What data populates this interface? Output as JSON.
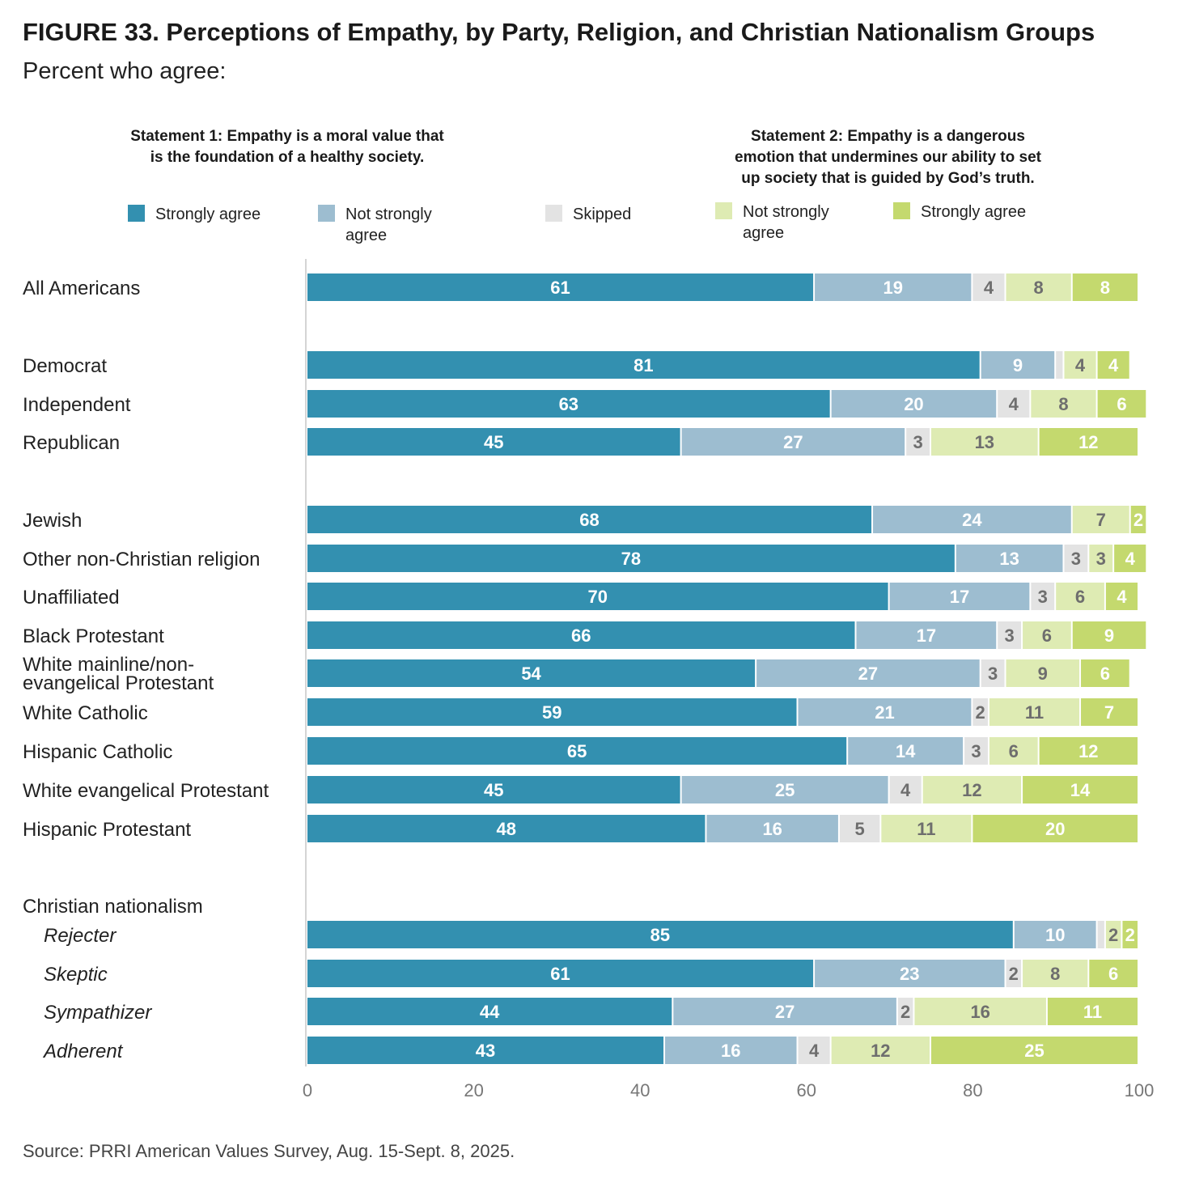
{
  "title": "FIGURE 33.  Perceptions of Empathy, by Party, Religion, and Christian Nationalism Groups",
  "subtitle": "Percent who agree:",
  "statement1": [
    "Statement 1: Empathy is a moral value that",
    "is the foundation of a healthy society."
  ],
  "statement2": [
    "Statement 2: Empathy is a dangerous",
    "emotion that undermines our ability to set",
    "up society that is guided by God’s truth."
  ],
  "legend": [
    {
      "label": "Strongly agree",
      "color": "#3390b0"
    },
    {
      "label": "Not strongly agree",
      "color": "#9dbdd0"
    },
    {
      "label": "Skipped",
      "color": "#e3e3e3"
    },
    {
      "label": "Not strongly agree",
      "color": "#deebb3"
    },
    {
      "label": "Strongly agree",
      "color": "#c4d96e"
    }
  ],
  "source": "Source: PRRI American Values Survey, Aug. 15-Sept. 8, 2025.",
  "chart_data": {
    "type": "bar",
    "orientation": "horizontal",
    "stacked": true,
    "xlim": [
      0,
      100
    ],
    "xticks": [
      0,
      20,
      40,
      60,
      80,
      100
    ],
    "series_names": [
      "Statement 1: Strongly agree",
      "Statement 1: Not strongly agree",
      "Skipped",
      "Statement 2: Not strongly agree",
      "Statement 2: Strongly agree"
    ],
    "colors": [
      "#3390b0",
      "#9dbdd0",
      "#e3e3e3",
      "#deebb3",
      "#c4d96e"
    ],
    "label_colors": [
      "#ffffff",
      "#ffffff",
      "#6e6e6e",
      "#6e6e6e",
      "#ffffff"
    ],
    "rows": [
      {
        "label": "All Americans",
        "italic": false,
        "values": [
          61,
          19,
          4,
          8,
          8
        ],
        "labels": [
          "61",
          "19",
          "4",
          "8",
          "8"
        ]
      },
      {
        "label": "Democrat",
        "italic": false,
        "values": [
          81,
          9,
          1,
          4,
          4
        ],
        "labels": [
          "81",
          "9",
          "",
          "4",
          "4"
        ]
      },
      {
        "label": "Independent",
        "italic": false,
        "values": [
          63,
          20,
          4,
          8,
          6
        ],
        "labels": [
          "63",
          "20",
          "4",
          "8",
          "6"
        ]
      },
      {
        "label": "Republican",
        "italic": false,
        "values": [
          45,
          27,
          3,
          13,
          12
        ],
        "labels": [
          "45",
          "27",
          "3",
          "13",
          "12"
        ]
      },
      {
        "label": "Jewish",
        "italic": false,
        "values": [
          68,
          24,
          0,
          7,
          2
        ],
        "labels": [
          "68",
          "24",
          "",
          "7",
          "2"
        ]
      },
      {
        "label": "Other non-Christian religion",
        "italic": false,
        "values": [
          78,
          13,
          3,
          3,
          4
        ],
        "labels": [
          "78",
          "13",
          "3",
          "3",
          "4"
        ]
      },
      {
        "label": "Unaffiliated",
        "italic": false,
        "values": [
          70,
          17,
          3,
          6,
          4
        ],
        "labels": [
          "70",
          "17",
          "3",
          "6",
          "4"
        ]
      },
      {
        "label": "Black Protestant",
        "italic": false,
        "values": [
          66,
          17,
          3,
          6,
          9
        ],
        "labels": [
          "66",
          "17",
          "3",
          "6",
          "9"
        ]
      },
      {
        "label": "White mainline/non-\nevangelical Protestant",
        "italic": false,
        "values": [
          54,
          27,
          3,
          9,
          6
        ],
        "labels": [
          "54",
          "27",
          "3",
          "9",
          "6"
        ]
      },
      {
        "label": "White Catholic",
        "italic": false,
        "values": [
          59,
          21,
          2,
          11,
          7
        ],
        "labels": [
          "59",
          "21",
          "2",
          "11",
          "7"
        ]
      },
      {
        "label": "Hispanic Catholic",
        "italic": false,
        "values": [
          65,
          14,
          3,
          6,
          12
        ],
        "labels": [
          "65",
          "14",
          "3",
          "6",
          "12"
        ]
      },
      {
        "label": "White evangelical Protestant",
        "italic": false,
        "values": [
          45,
          25,
          4,
          12,
          14
        ],
        "labels": [
          "45",
          "25",
          "4",
          "12",
          "14"
        ]
      },
      {
        "label": "Hispanic Protestant",
        "italic": false,
        "values": [
          48,
          16,
          5,
          11,
          20
        ],
        "labels": [
          "48",
          "16",
          "5",
          "11",
          "20"
        ]
      },
      {
        "label": "Rejecter",
        "italic": true,
        "group_header": "Christian nationalism",
        "values": [
          85,
          10,
          1,
          2,
          2
        ],
        "labels": [
          "85",
          "10",
          "",
          "2",
          "2"
        ]
      },
      {
        "label": "Skeptic",
        "italic": true,
        "values": [
          61,
          23,
          2,
          8,
          6
        ],
        "labels": [
          "61",
          "23",
          "2",
          "8",
          "6"
        ]
      },
      {
        "label": "Sympathizer",
        "italic": true,
        "values": [
          44,
          27,
          2,
          16,
          11
        ],
        "labels": [
          "44",
          "27",
          "2",
          "16",
          "11"
        ]
      },
      {
        "label": "Adherent",
        "italic": true,
        "values": [
          43,
          16,
          4,
          12,
          25
        ],
        "labels": [
          "43",
          "16",
          "4",
          "12",
          "25"
        ]
      }
    ]
  }
}
